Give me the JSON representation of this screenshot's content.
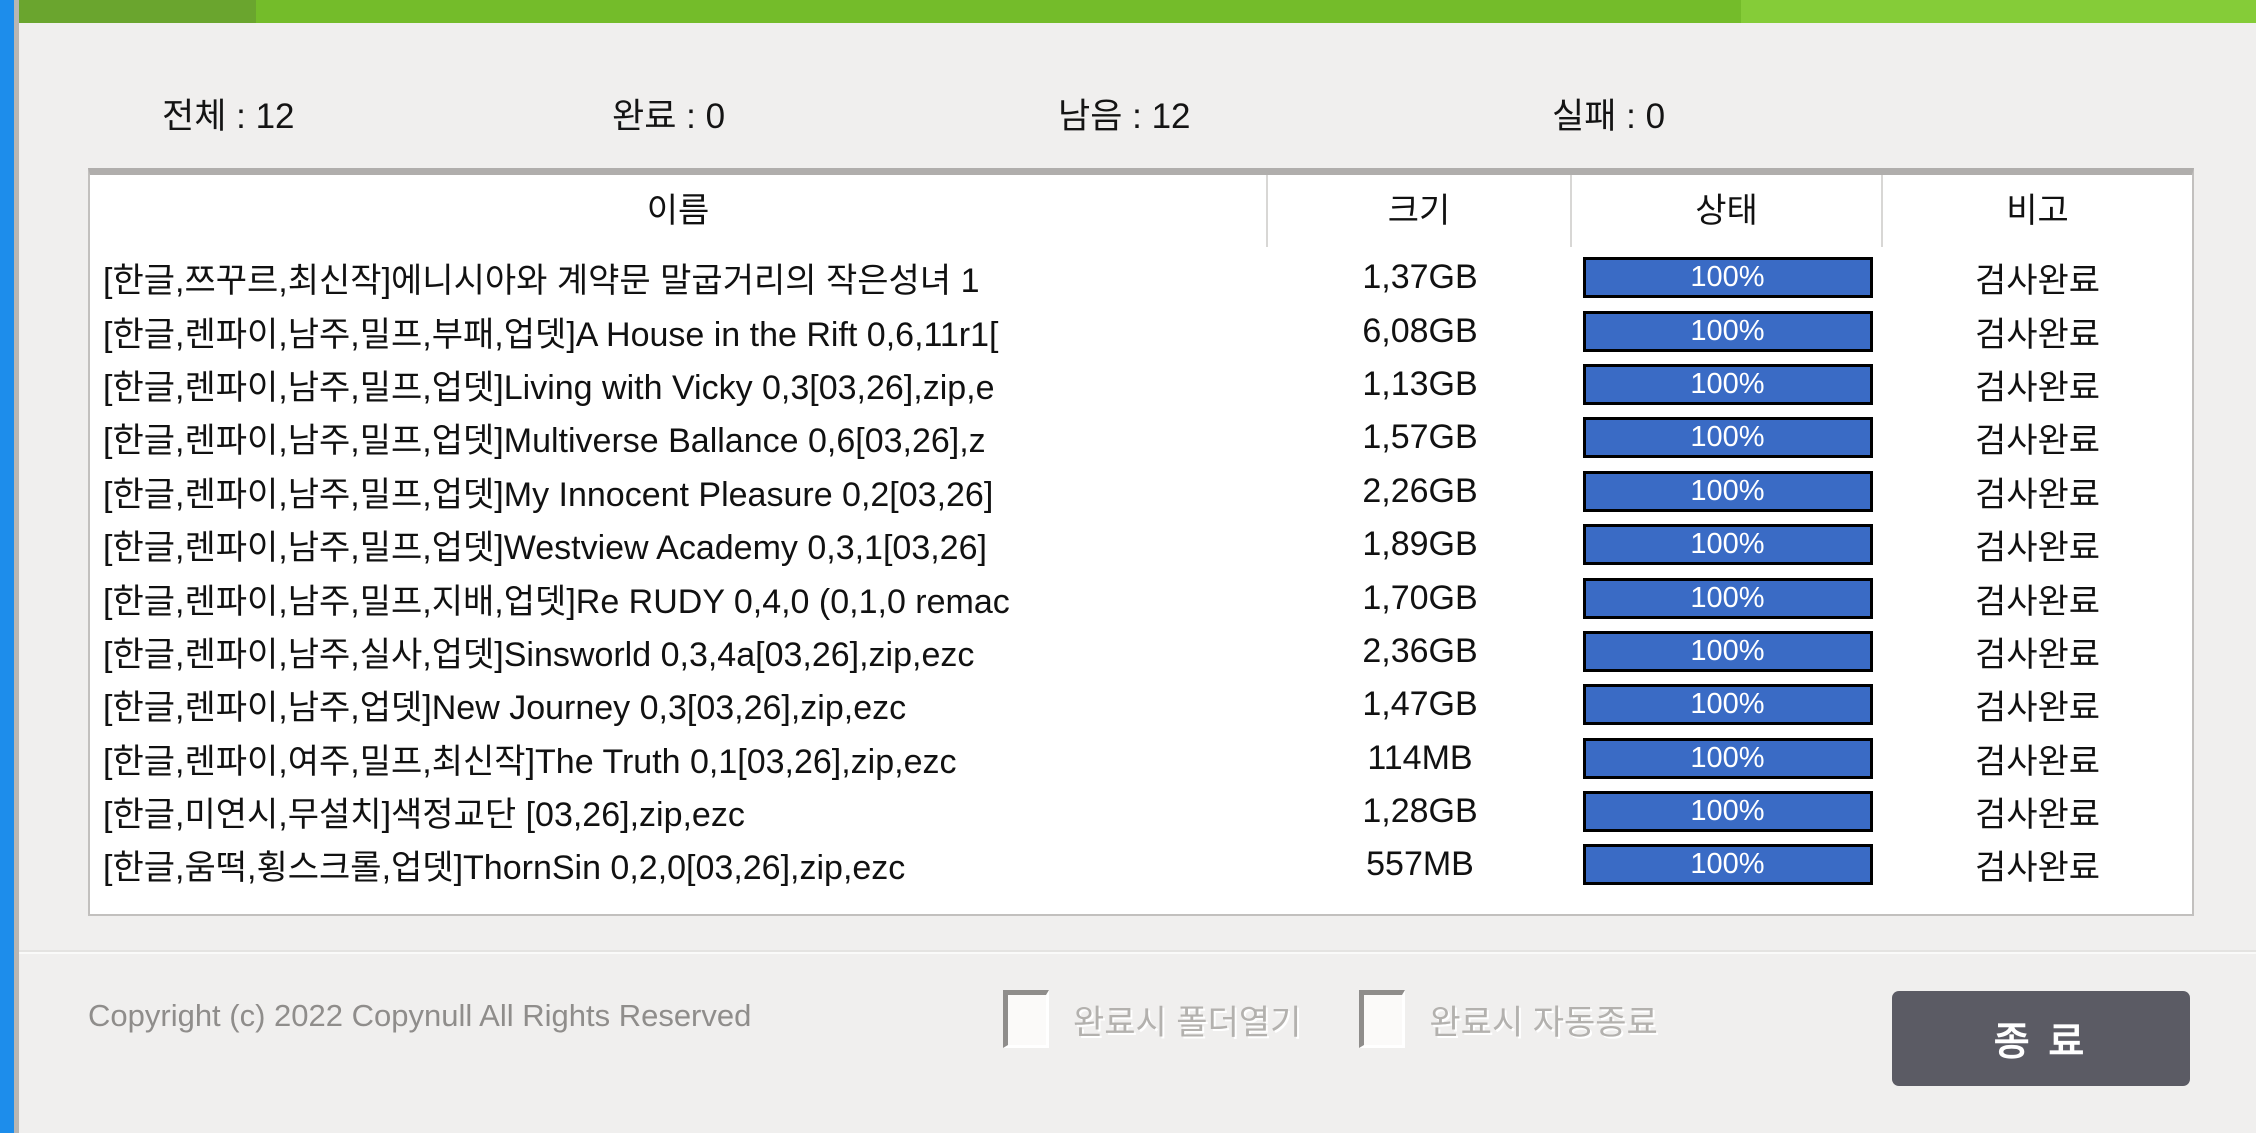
{
  "stats": {
    "items": [
      {
        "text": "전체 : 12"
      },
      {
        "text": "완료 : 0"
      },
      {
        "text": "남음 : 12"
      },
      {
        "text": "실패 : 0"
      }
    ]
  },
  "table": {
    "columns": [
      {
        "label": "이름"
      },
      {
        "label": "크기"
      },
      {
        "label": "상태"
      },
      {
        "label": "비고"
      }
    ],
    "rows": [
      {
        "name": "[한글,쯔꾸르,최신작]에니시아와 계약문 말굽거리의 작은성녀 1",
        "size": "1,37GB",
        "progress": "100%",
        "remark": "검사완료"
      },
      {
        "name": "[한글,렌파이,남주,밀프,부패,업뎃]A House in the Rift 0,6,11r1[",
        "size": "6,08GB",
        "progress": "100%",
        "remark": "검사완료"
      },
      {
        "name": "[한글,렌파이,남주,밀프,업뎃]Living with Vicky 0,3[03,26],zip,e",
        "size": "1,13GB",
        "progress": "100%",
        "remark": "검사완료"
      },
      {
        "name": "[한글,렌파이,남주,밀프,업뎃]Multiverse Ballance 0,6[03,26],z",
        "size": "1,57GB",
        "progress": "100%",
        "remark": "검사완료"
      },
      {
        "name": "[한글,렌파이,남주,밀프,업뎃]My Innocent Pleasure 0,2[03,26]",
        "size": "2,26GB",
        "progress": "100%",
        "remark": "검사완료"
      },
      {
        "name": "[한글,렌파이,남주,밀프,업뎃]Westview Academy 0,3,1[03,26]",
        "size": "1,89GB",
        "progress": "100%",
        "remark": "검사완료"
      },
      {
        "name": "[한글,렌파이,남주,밀프,지배,업뎃]Re RUDY 0,4,0 (0,1,0 remac",
        "size": "1,70GB",
        "progress": "100%",
        "remark": "검사완료"
      },
      {
        "name": "[한글,렌파이,남주,실사,업뎃]Sinsworld 0,3,4a[03,26],zip,ezc",
        "size": "2,36GB",
        "progress": "100%",
        "remark": "검사완료"
      },
      {
        "name": "[한글,렌파이,남주,업뎃]New Journey 0,3[03,26],zip,ezc",
        "size": "1,47GB",
        "progress": "100%",
        "remark": "검사완료"
      },
      {
        "name": "[한글,렌파이,여주,밀프,최신작]The Truth 0,1[03,26],zip,ezc",
        "size": "114MB",
        "progress": "100%",
        "remark": "검사완료"
      },
      {
        "name": "[한글,미연시,무설치]색정교단 [03,26],zip,ezc",
        "size": "1,28GB",
        "progress": "100%",
        "remark": "검사완료"
      },
      {
        "name": "[한글,움떡,횡스크롤,업뎃]ThornSin 0,2,0[03,26],zip,ezc",
        "size": "557MB",
        "progress": "100%",
        "remark": "검사완료"
      }
    ]
  },
  "footer": {
    "copyright": "Copyright (c) 2022 Copynull All Rights Reserved",
    "checkboxes": [
      {
        "label": "완료시 폴더열기",
        "checked": false
      },
      {
        "label": "완료시 자동종료",
        "checked": false
      }
    ],
    "exit_label": "종 료"
  },
  "colors": {
    "window_bg": "#f0efee",
    "left_strip_blue": "#1d8deb",
    "green_dark": "#6aa52e",
    "green_mid": "#74bc2a",
    "green_light": "#85cc38",
    "table_border": "#b0aeac",
    "progress_blue": "#3a6bc5",
    "progress_border": "#000000",
    "button_bg": "#5b5b64",
    "disabled_text": "#b3b1ae",
    "copyright_text": "#8f8d8b"
  }
}
